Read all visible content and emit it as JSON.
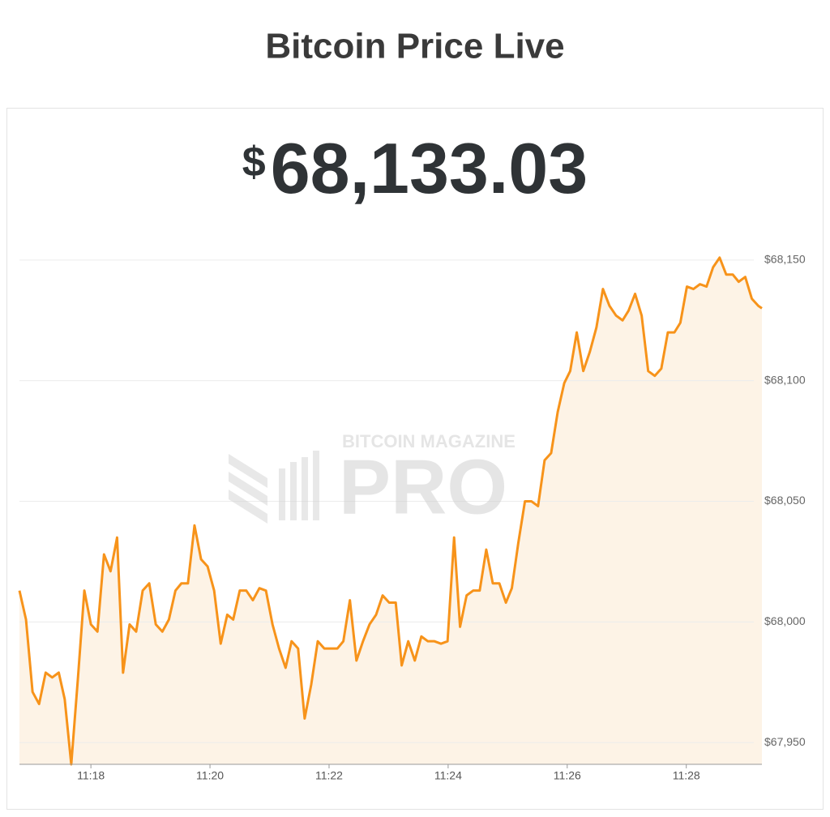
{
  "chart_data": {
    "type": "line",
    "title": "Bitcoin Price Live",
    "price": {
      "symbol": "$",
      "amount": "68,133.03"
    },
    "watermark": {
      "top": "BITCOIN MAGAZINE",
      "bottom": "PRO"
    },
    "color": "#f7931a",
    "area_color": "#fdf3e6",
    "grid": true,
    "x": [
      676.8,
      676.91,
      677.02,
      677.13,
      677.24,
      677.35,
      677.46,
      677.56,
      677.67,
      677.78,
      677.89,
      678.0,
      678.11,
      678.22,
      678.33,
      678.44,
      678.54,
      678.65,
      678.76,
      678.87,
      678.98,
      679.09,
      679.2,
      679.31,
      679.42,
      679.52,
      679.63,
      679.74,
      679.85,
      679.96,
      680.07,
      680.18,
      680.29,
      680.39,
      680.5,
      680.61,
      680.72,
      680.83,
      680.94,
      681.05,
      681.16,
      681.27,
      681.37,
      681.48,
      681.59,
      681.7,
      681.81,
      681.92,
      682.03,
      682.14,
      682.24,
      682.35,
      682.46,
      682.57,
      682.68,
      682.79,
      682.9,
      683.01,
      683.12,
      683.22,
      683.33,
      683.44,
      683.55,
      683.66,
      683.77,
      683.88,
      683.99,
      684.1,
      684.2,
      684.31,
      684.42,
      684.53,
      684.64,
      684.75,
      684.86,
      684.97,
      685.07,
      685.18,
      685.29,
      685.4,
      685.51,
      685.62,
      685.73,
      685.84,
      685.95,
      686.05,
      686.16,
      686.27,
      686.38,
      686.49,
      686.6,
      686.71,
      686.82,
      686.93,
      687.03,
      687.14,
      687.25,
      687.36,
      687.47,
      687.58,
      687.69,
      687.8,
      687.9,
      688.01,
      688.12,
      688.23,
      688.34,
      688.45,
      688.56,
      688.67,
      688.78,
      688.88,
      688.99,
      689.1,
      689.21,
      689.27
    ],
    "values": [
      68013,
      68001,
      67971,
      67966,
      67979,
      67977,
      67979,
      67968,
      67941,
      67976,
      68013,
      67999,
      67996,
      68028,
      68021,
      68035,
      67979,
      67999,
      67996,
      68013,
      68016,
      67999,
      67996,
      68001,
      68013,
      68016,
      68016,
      68040,
      68026,
      68023,
      68013,
      67991,
      68003,
      68001,
      68013,
      68013,
      68009,
      68014,
      68013,
      67999,
      67989,
      67981,
      67992,
      67989,
      67960,
      67974,
      67992,
      67989,
      67989,
      67989,
      67992,
      68009,
      67984,
      67992,
      67999,
      68003,
      68011,
      68008,
      68008,
      67982,
      67992,
      67984,
      67994,
      67992,
      67992,
      67991,
      67992,
      68035,
      67998,
      68011,
      68013,
      68013,
      68030,
      68016,
      68016,
      68008,
      68014,
      68033,
      68050,
      68050,
      68048,
      68067,
      68070,
      68087,
      68099,
      68104,
      68120,
      68104,
      68112,
      68122,
      68138,
      68131,
      68127,
      68125,
      68129,
      68136,
      68127,
      68104,
      68102,
      68105,
      68120,
      68120,
      68124,
      68139,
      68138,
      68140,
      68139,
      68147,
      68151,
      68144,
      68144,
      68141,
      68143,
      68134,
      68131,
      68130
    ],
    "xlim": [
      676.8,
      689.27
    ],
    "ylim": [
      67941,
      68157
    ],
    "xticks": [
      {
        "value": 678,
        "label": "11:18"
      },
      {
        "value": 680,
        "label": "11:20"
      },
      {
        "value": 682,
        "label": "11:22"
      },
      {
        "value": 684,
        "label": "11:24"
      },
      {
        "value": 686,
        "label": "11:26"
      },
      {
        "value": 688,
        "label": "11:28"
      }
    ],
    "yticks": [
      {
        "value": 67950,
        "label": "$67,950"
      },
      {
        "value": 68000,
        "label": "$68,000"
      },
      {
        "value": 68050,
        "label": "$68,050"
      },
      {
        "value": 68100,
        "label": "$68,100"
      },
      {
        "value": 68150,
        "label": "$68,150"
      }
    ]
  }
}
